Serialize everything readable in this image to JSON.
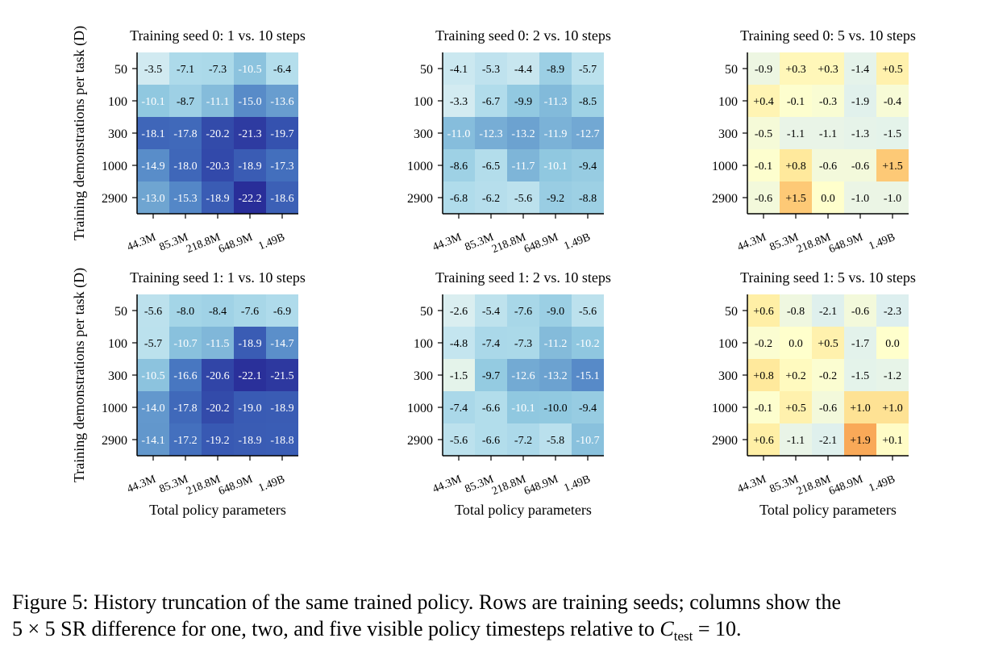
{
  "chart_data": [
    {
      "type": "heatmap",
      "title": "Training seed 0: 1 vs. 10 steps",
      "ylabel": "Training demonstrations per task (D)",
      "xlabel": "",
      "x_categories": [
        "44.3M",
        "85.3M",
        "218.8M",
        "648.9M",
        "1.49B"
      ],
      "y_categories": [
        "50",
        "100",
        "300",
        "1000",
        "2900"
      ],
      "values": [
        [
          "-3.5",
          "-7.1",
          "-7.3",
          "-10.5",
          "-6.4"
        ],
        [
          "-10.1",
          "-8.7",
          "-11.1",
          "-15.0",
          "-13.6"
        ],
        [
          "-18.1",
          "-17.8",
          "-20.2",
          "-21.3",
          "-19.7"
        ],
        [
          "-14.9",
          "-18.0",
          "-20.3",
          "-18.9",
          "-17.3"
        ],
        [
          "-13.0",
          "-15.3",
          "-18.9",
          "-22.2",
          "-18.6"
        ]
      ]
    },
    {
      "type": "heatmap",
      "title": "Training seed 0: 2 vs. 10 steps",
      "ylabel": "",
      "xlabel": "",
      "x_categories": [
        "44.3M",
        "85.3M",
        "218.8M",
        "648.9M",
        "1.49B"
      ],
      "y_categories": [
        "50",
        "100",
        "300",
        "1000",
        "2900"
      ],
      "values": [
        [
          "-4.1",
          "-5.3",
          "-4.4",
          "-8.9",
          "-5.7"
        ],
        [
          "-3.3",
          "-6.7",
          "-9.9",
          "-11.3",
          "-8.5"
        ],
        [
          "-11.0",
          "-12.3",
          "-13.2",
          "-11.9",
          "-12.7"
        ],
        [
          "-8.6",
          "-6.5",
          "-11.7",
          "-10.1",
          "-9.4"
        ],
        [
          "-6.8",
          "-6.2",
          "-5.6",
          "-9.2",
          "-8.8"
        ]
      ]
    },
    {
      "type": "heatmap",
      "title": "Training seed 0: 5 vs. 10 steps",
      "ylabel": "",
      "xlabel": "",
      "x_categories": [
        "44.3M",
        "85.3M",
        "218.8M",
        "648.9M",
        "1.49B"
      ],
      "y_categories": [
        "50",
        "100",
        "300",
        "1000",
        "2900"
      ],
      "values": [
        [
          "-0.9",
          "+0.3",
          "+0.3",
          "-1.4",
          "+0.5"
        ],
        [
          "+0.4",
          "-0.1",
          "-0.3",
          "-1.9",
          "-0.4"
        ],
        [
          "-0.5",
          "-1.1",
          "-1.1",
          "-1.3",
          "-1.5"
        ],
        [
          "-0.1",
          "+0.8",
          "-0.6",
          "-0.6",
          "+1.5"
        ],
        [
          "-0.6",
          "+1.5",
          "0.0",
          "-1.0",
          "-1.0"
        ]
      ]
    },
    {
      "type": "heatmap",
      "title": "Training seed 1: 1 vs. 10 steps",
      "ylabel": "Training demonstrations per task (D)",
      "xlabel": "Total policy parameters",
      "x_categories": [
        "44.3M",
        "85.3M",
        "218.8M",
        "648.9M",
        "1.49B"
      ],
      "y_categories": [
        "50",
        "100",
        "300",
        "1000",
        "2900"
      ],
      "values": [
        [
          "-5.6",
          "-8.0",
          "-8.4",
          "-7.6",
          "-6.9"
        ],
        [
          "-5.7",
          "-10.7",
          "-11.5",
          "-18.9",
          "-14.7"
        ],
        [
          "-10.5",
          "-16.6",
          "-20.6",
          "-22.1",
          "-21.5"
        ],
        [
          "-14.0",
          "-17.8",
          "-20.2",
          "-19.0",
          "-18.9"
        ],
        [
          "-14.1",
          "-17.2",
          "-19.2",
          "-18.9",
          "-18.8"
        ]
      ]
    },
    {
      "type": "heatmap",
      "title": "Training seed 1: 2 vs. 10 steps",
      "ylabel": "",
      "xlabel": "Total policy parameters",
      "x_categories": [
        "44.3M",
        "85.3M",
        "218.8M",
        "648.9M",
        "1.49B"
      ],
      "y_categories": [
        "50",
        "100",
        "300",
        "1000",
        "2900"
      ],
      "values": [
        [
          "-2.6",
          "-5.4",
          "-7.6",
          "-9.0",
          "-5.6"
        ],
        [
          "-4.8",
          "-7.4",
          "-7.3",
          "-11.2",
          "-10.2"
        ],
        [
          "-1.5",
          "-9.7",
          "-12.6",
          "-13.2",
          "-15.1"
        ],
        [
          "-7.4",
          "-6.6",
          "-10.1",
          "-10.0",
          "-9.4"
        ],
        [
          "-5.6",
          "-6.6",
          "-7.2",
          "-5.8",
          "-10.7"
        ]
      ]
    },
    {
      "type": "heatmap",
      "title": "Training seed 1: 5 vs. 10 steps",
      "ylabel": "",
      "xlabel": "Total policy parameters",
      "x_categories": [
        "44.3M",
        "85.3M",
        "218.8M",
        "648.9M",
        "1.49B"
      ],
      "y_categories": [
        "50",
        "100",
        "300",
        "1000",
        "2900"
      ],
      "values": [
        [
          "+0.6",
          "-0.8",
          "-2.1",
          "-0.6",
          "-2.3"
        ],
        [
          "-0.2",
          "0.0",
          "+0.5",
          "-1.7",
          "0.0"
        ],
        [
          "+0.8",
          "+0.2",
          "-0.2",
          "-1.5",
          "-1.2"
        ],
        [
          "-0.1",
          "+0.5",
          "-0.6",
          "+1.0",
          "+1.0"
        ],
        [
          "+0.6",
          "-1.1",
          "-2.1",
          "+1.9",
          "+0.1"
        ]
      ]
    }
  ],
  "caption": {
    "label": "Figure 5:",
    "text_line1": "History truncation of the same trained policy. Rows are training seeds; columns show the",
    "text_line2_start": "5 × 5 SR difference for one, two, and five visible policy timesteps relative to",
    "math_var": "C",
    "math_sub": "test",
    "text_line2_end": " = 10."
  }
}
